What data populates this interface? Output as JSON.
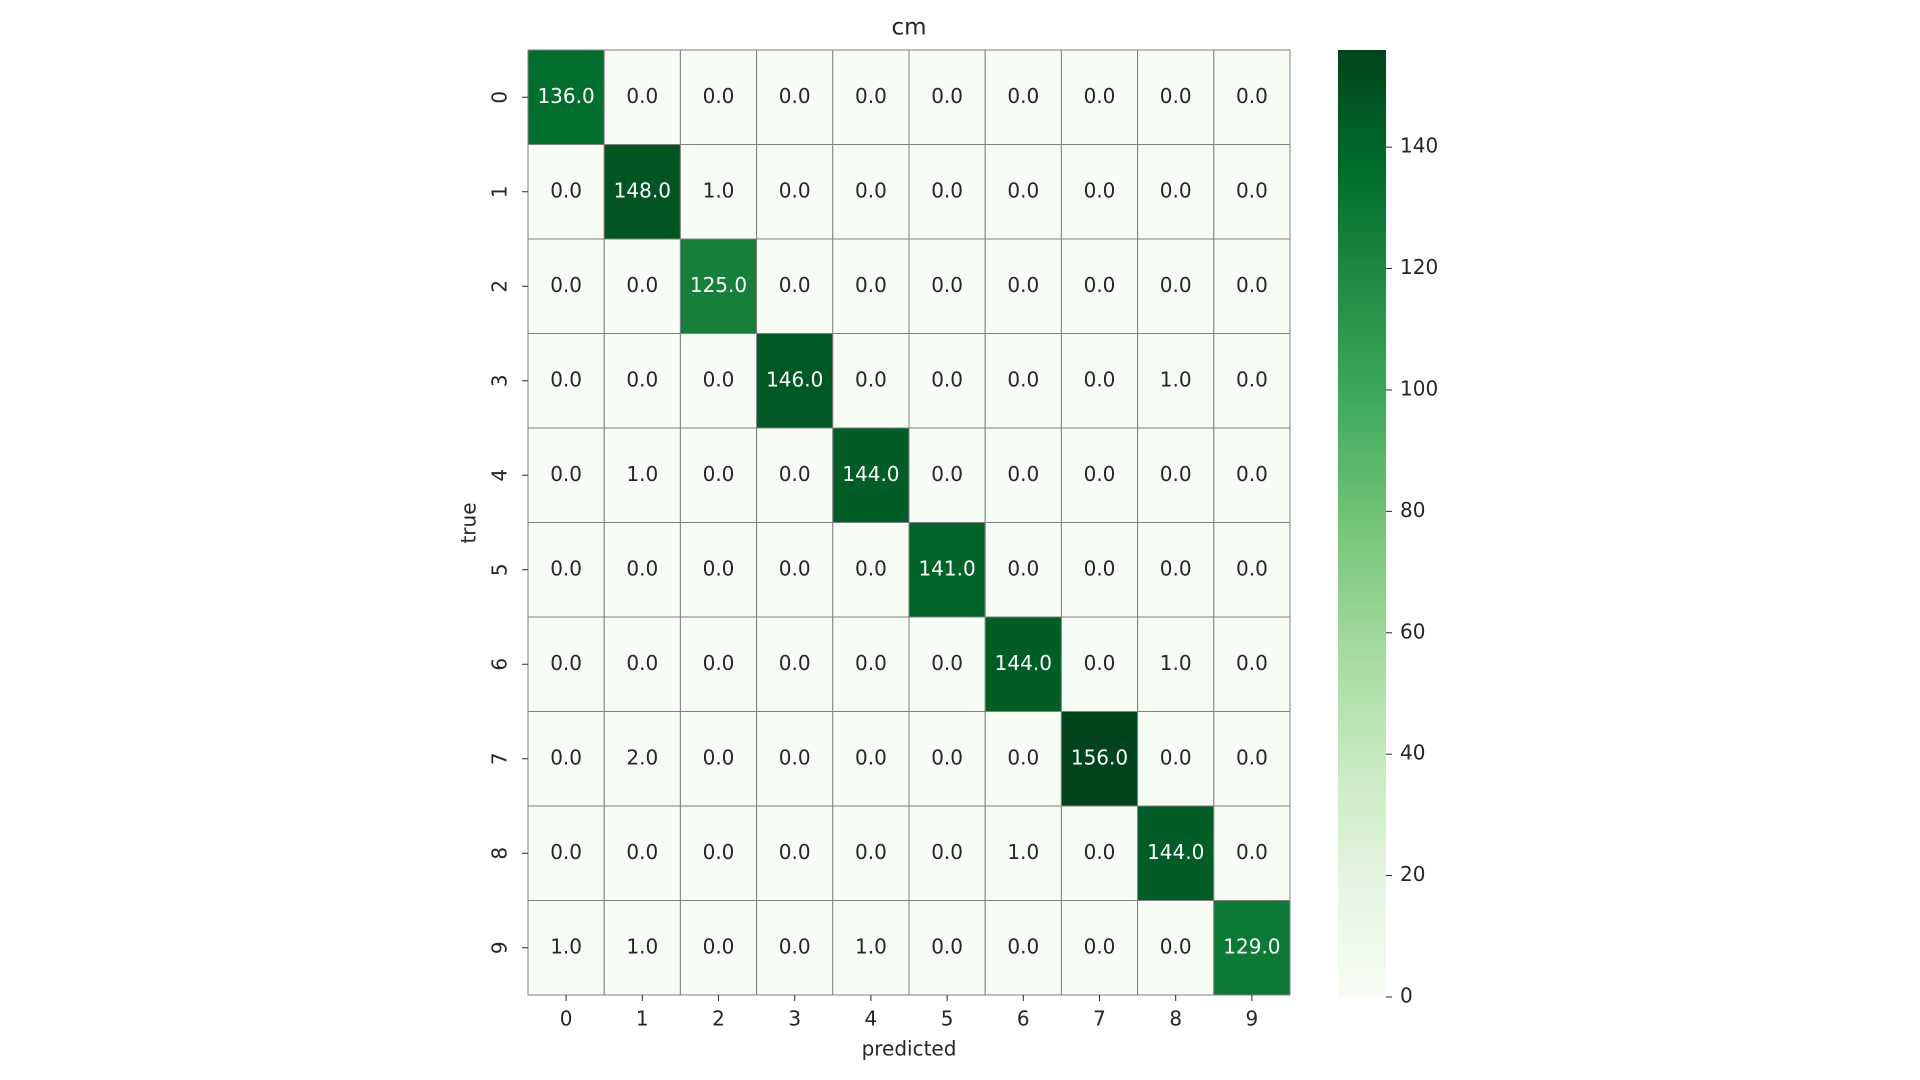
{
  "chart_data": {
    "type": "heatmap",
    "title": "cm",
    "xlabel": "predicted",
    "ylabel": "true",
    "categories": [
      "0",
      "1",
      "2",
      "3",
      "4",
      "5",
      "6",
      "7",
      "8",
      "9"
    ],
    "y_categories": [
      "0",
      "1",
      "2",
      "3",
      "4",
      "5",
      "6",
      "7",
      "8",
      "9"
    ],
    "values": [
      [
        136,
        0,
        0,
        0,
        0,
        0,
        0,
        0,
        0,
        0
      ],
      [
        0,
        148,
        1,
        0,
        0,
        0,
        0,
        0,
        0,
        0
      ],
      [
        0,
        0,
        125,
        0,
        0,
        0,
        0,
        0,
        0,
        0
      ],
      [
        0,
        0,
        0,
        146,
        0,
        0,
        0,
        0,
        1,
        0
      ],
      [
        0,
        1,
        0,
        0,
        144,
        0,
        0,
        0,
        0,
        0
      ],
      [
        0,
        0,
        0,
        0,
        0,
        141,
        0,
        0,
        0,
        0
      ],
      [
        0,
        0,
        0,
        0,
        0,
        0,
        144,
        0,
        1,
        0
      ],
      [
        0,
        2,
        0,
        0,
        0,
        0,
        0,
        156,
        0,
        0
      ],
      [
        0,
        0,
        0,
        0,
        0,
        0,
        1,
        0,
        144,
        0
      ],
      [
        1,
        1,
        0,
        0,
        1,
        0,
        0,
        0,
        0,
        129
      ]
    ],
    "value_labels": [
      [
        "136.0",
        "0.0",
        "0.0",
        "0.0",
        "0.0",
        "0.0",
        "0.0",
        "0.0",
        "0.0",
        "0.0"
      ],
      [
        "0.0",
        "148.0",
        "1.0",
        "0.0",
        "0.0",
        "0.0",
        "0.0",
        "0.0",
        "0.0",
        "0.0"
      ],
      [
        "0.0",
        "0.0",
        "125.0",
        "0.0",
        "0.0",
        "0.0",
        "0.0",
        "0.0",
        "0.0",
        "0.0"
      ],
      [
        "0.0",
        "0.0",
        "0.0",
        "146.0",
        "0.0",
        "0.0",
        "0.0",
        "0.0",
        "1.0",
        "0.0"
      ],
      [
        "0.0",
        "1.0",
        "0.0",
        "0.0",
        "144.0",
        "0.0",
        "0.0",
        "0.0",
        "0.0",
        "0.0"
      ],
      [
        "0.0",
        "0.0",
        "0.0",
        "0.0",
        "0.0",
        "141.0",
        "0.0",
        "0.0",
        "0.0",
        "0.0"
      ],
      [
        "0.0",
        "0.0",
        "0.0",
        "0.0",
        "0.0",
        "0.0",
        "144.0",
        "0.0",
        "1.0",
        "0.0"
      ],
      [
        "0.0",
        "2.0",
        "0.0",
        "0.0",
        "0.0",
        "0.0",
        "0.0",
        "156.0",
        "0.0",
        "0.0"
      ],
      [
        "0.0",
        "0.0",
        "0.0",
        "0.0",
        "0.0",
        "0.0",
        "1.0",
        "0.0",
        "144.0",
        "0.0"
      ],
      [
        "1.0",
        "1.0",
        "0.0",
        "0.0",
        "1.0",
        "0.0",
        "0.0",
        "0.0",
        "0.0",
        "129.0"
      ]
    ],
    "colormap": [
      "#f7fcf5",
      "#e5f5e0",
      "#c7e9c0",
      "#a1d99b",
      "#74c476",
      "#41ab5d",
      "#238b45",
      "#006d2c",
      "#00441b"
    ],
    "clim": [
      0,
      156
    ],
    "cticks": [
      0,
      20,
      40,
      60,
      80,
      100,
      120,
      140
    ]
  }
}
